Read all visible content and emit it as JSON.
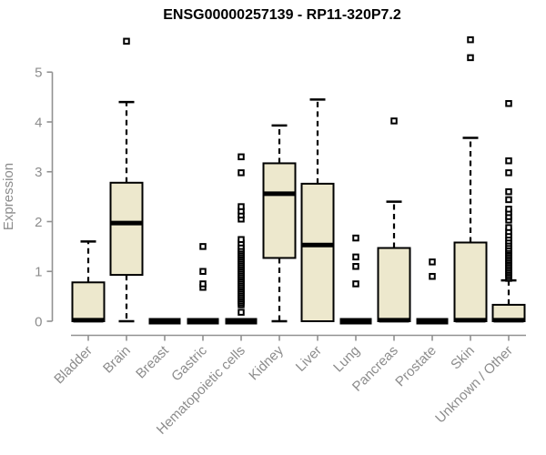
{
  "window": {
    "background": "#ffffff"
  },
  "colors": {
    "box_fill": "#EDE8CD",
    "box_stroke": "#000000",
    "median": "#000000",
    "whisker": "#000000",
    "outlier_stroke": "#000000",
    "outlier_fill": "#ffffff",
    "axis_line": "#919191",
    "axis_text": "#8c8c8c",
    "title_text": "#000000"
  },
  "chart_data": {
    "type": "boxplot",
    "title": "ENSG00000257139 - RP11-320P7.2",
    "xlabel": "",
    "ylabel": "Expression",
    "ylim": [
      0,
      5.7
    ],
    "yticks": [
      0,
      1,
      2,
      3,
      4,
      5
    ],
    "grid": false,
    "legend": null,
    "categories": [
      "Bladder",
      "Brain",
      "Breast",
      "Gastric",
      "Hematopoietic cells",
      "Kidney",
      "Liver",
      "Lung",
      "Pancreas",
      "Prostate",
      "Skin",
      "Unknown / Other"
    ],
    "boxes": [
      {
        "category": "Bladder",
        "low": 0,
        "q1": 0,
        "median": 0.02,
        "q3": 0.78,
        "high": 1.6,
        "outliers": []
      },
      {
        "category": "Brain",
        "low": 0,
        "q1": 0.93,
        "median": 1.97,
        "q3": 2.78,
        "high": 4.4,
        "outliers": [
          5.62
        ]
      },
      {
        "category": "Breast",
        "low": 0,
        "q1": 0,
        "median": 0,
        "q3": 0,
        "high": 0,
        "outliers": []
      },
      {
        "category": "Gastric",
        "low": 0,
        "q1": 0,
        "median": 0,
        "q3": 0,
        "high": 0,
        "outliers": [
          0.68,
          0.75,
          1.0,
          1.5
        ]
      },
      {
        "category": "Hematopoietic cells",
        "low": 0,
        "q1": 0,
        "median": 0,
        "q3": 0,
        "high": 0,
        "outliers": [
          0.18,
          0.33,
          0.37,
          0.41,
          0.45,
          0.49,
          0.53,
          0.57,
          0.61,
          0.65,
          0.69,
          0.73,
          0.77,
          0.81,
          0.85,
          0.89,
          0.93,
          0.97,
          1.01,
          1.05,
          1.09,
          1.13,
          1.17,
          1.21,
          1.25,
          1.29,
          1.33,
          1.37,
          1.41,
          1.45,
          1.5,
          1.57,
          1.64,
          2.05,
          2.13,
          2.21,
          2.3,
          2.98,
          3.3
        ]
      },
      {
        "category": "Kidney",
        "low": 0,
        "q1": 1.27,
        "median": 2.56,
        "q3": 3.17,
        "high": 3.93,
        "outliers": []
      },
      {
        "category": "Liver",
        "low": 0,
        "q1": 0,
        "median": 1.53,
        "q3": 2.76,
        "high": 4.45,
        "outliers": []
      },
      {
        "category": "Lung",
        "low": 0,
        "q1": 0,
        "median": 0,
        "q3": 0,
        "high": 0,
        "outliers": [
          0.75,
          1.1,
          1.29,
          1.67
        ]
      },
      {
        "category": "Pancreas",
        "low": 0,
        "q1": 0,
        "median": 0.02,
        "q3": 1.47,
        "high": 2.4,
        "outliers": [
          4.02
        ]
      },
      {
        "category": "Prostate",
        "low": 0,
        "q1": 0,
        "median": 0,
        "q3": 0,
        "high": 0,
        "outliers": [
          0.9,
          1.19
        ]
      },
      {
        "category": "Skin",
        "low": 0,
        "q1": 0,
        "median": 0.02,
        "q3": 1.58,
        "high": 3.68,
        "outliers": [
          5.29,
          5.65
        ]
      },
      {
        "category": "Unknown / Other",
        "low": 0,
        "q1": 0,
        "median": 0.02,
        "q3": 0.33,
        "high": 0.82,
        "outliers": [
          0.86,
          0.9,
          0.94,
          0.98,
          1.02,
          1.06,
          1.1,
          1.14,
          1.18,
          1.22,
          1.26,
          1.3,
          1.34,
          1.38,
          1.42,
          1.46,
          1.51,
          1.56,
          1.61,
          1.67,
          1.73,
          1.8,
          1.88,
          2.03,
          2.1,
          2.18,
          2.25,
          2.44,
          2.6,
          2.98,
          3.22,
          4.37
        ]
      }
    ]
  }
}
